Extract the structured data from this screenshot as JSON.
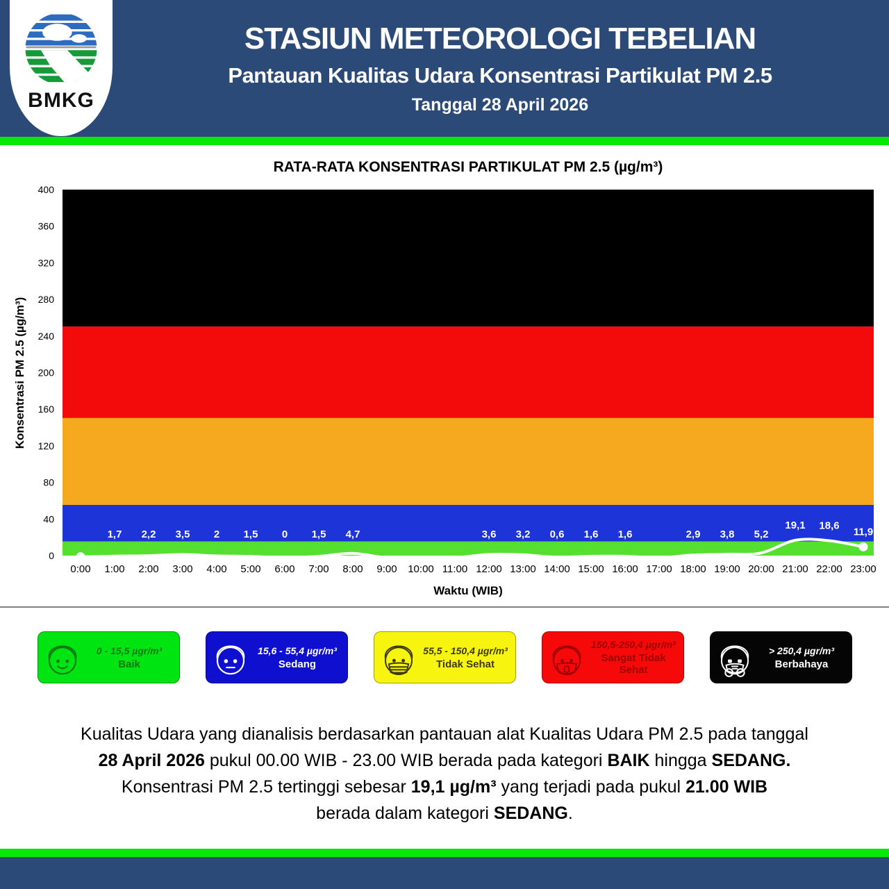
{
  "header": {
    "logo_text": "BMKG",
    "title": "STASIUN METEOROLOGI TEBELIAN",
    "subtitle": "Pantauan Kualitas Udara Konsentrasi Partikulat PM 2.5",
    "date_line": "Tanggal 28 April 2026"
  },
  "colors": {
    "header_bg": "#2b4a78",
    "strip_green": "#07e907",
    "footer_bg": "#2b4a78",
    "divider": "#7f7f7f"
  },
  "chart_data": {
    "type": "line",
    "title": "RATA-RATA KONSENTRASI PARTIKULAT PM 2.5 (µg/m³)",
    "xlabel": "Waktu (WIB)",
    "ylabel": "Konsentrasi PM 2.5 (µg/m³)",
    "ylim": [
      0,
      400
    ],
    "yticks": [
      0,
      40,
      80,
      120,
      160,
      200,
      240,
      280,
      320,
      360,
      400
    ],
    "grid": false,
    "legend_position": "below",
    "categories": [
      "0:00",
      "1:00",
      "2:00",
      "3:00",
      "4:00",
      "5:00",
      "6:00",
      "7:00",
      "8:00",
      "9:00",
      "10:00",
      "11:00",
      "12:00",
      "13:00",
      "14:00",
      "15:00",
      "16:00",
      "17:00",
      "18:00",
      "19:00",
      "20:00",
      "21:00",
      "22:00",
      "23:00"
    ],
    "values": [
      1,
      1.7,
      2.2,
      3.5,
      2,
      1.5,
      0,
      1.5,
      4.7,
      0,
      0,
      0,
      3.6,
      3.2,
      0.6,
      1.6,
      1.6,
      0,
      2.9,
      3.8,
      5.2,
      19.1,
      18.6,
      11.9
    ],
    "labels": [
      "",
      "1,7",
      "2,2",
      "3,5",
      "2",
      "1,5",
      "0",
      "1,5",
      "4,7",
      "",
      "",
      "",
      "3,6",
      "3,2",
      "0,6",
      "1,6",
      "1,6",
      "",
      "2,9",
      "3,8",
      "5,2",
      "19,1",
      "18,6",
      "11,9"
    ],
    "line_color": "#ffffff",
    "bands": [
      {
        "name": "baik",
        "from": 0,
        "to": 15.5,
        "color": "#55df2e"
      },
      {
        "name": "sedang",
        "from": 15.5,
        "to": 55.4,
        "color": "#1c34d8"
      },
      {
        "name": "tidak-sehat",
        "from": 55.4,
        "to": 150.4,
        "color": "#f6a81e"
      },
      {
        "name": "sangat-tidak-sehat",
        "from": 150.4,
        "to": 250.4,
        "color": "#f30b0b"
      },
      {
        "name": "berbahaya",
        "from": 250.4,
        "to": 400,
        "color": "#000000"
      }
    ]
  },
  "legend": {
    "items": [
      {
        "range": "0 - 15,5 µgr/m³",
        "label": "Baik",
        "bg": "#00e412",
        "fg": "#0e7a0e"
      },
      {
        "range": "15,6 - 55,4 µgr/m³",
        "label": "Sedang",
        "bg": "#0f10cf",
        "fg": "#ffffff"
      },
      {
        "range": "55,5 - 150,4 µgr/m³",
        "label": "Tidak Sehat",
        "bg": "#f7f410",
        "fg": "#3f3b00"
      },
      {
        "range": "150,5-250,4 µgr/m³",
        "label": "Sangat Tidak Sehat",
        "bg": "#f60909",
        "fg": "#9e0000"
      },
      {
        "range": "> 250,4 µgr/m³",
        "label": "Berbahaya",
        "bg": "#050505",
        "fg": "#ffffff"
      }
    ]
  },
  "summary": {
    "lines": [
      [
        {
          "t": "Kualitas Udara yang dianalisis berdasarkan pantauan alat Kualitas Udara PM 2.5 pada tanggal",
          "b": false
        }
      ],
      [
        {
          "t": "28 April 2026",
          "b": true
        },
        {
          "t": " pukul 00.00 WIB - 23.00 WIB berada pada kategori ",
          "b": false
        },
        {
          "t": "BAIK",
          "b": true
        },
        {
          "t": " hingga ",
          "b": false
        },
        {
          "t": "SEDANG.",
          "b": true
        }
      ],
      [
        {
          "t": "Konsentrasi PM 2.5 tertinggi sebesar  ",
          "b": false
        },
        {
          "t": "19,1 µg/m³",
          "b": true
        },
        {
          "t": " yang terjadi pada pukul ",
          "b": false
        },
        {
          "t": "21.00 WIB",
          "b": true
        }
      ],
      [
        {
          "t": "berada dalam kategori ",
          "b": false
        },
        {
          "t": "SEDANG",
          "b": true
        },
        {
          "t": ".",
          "b": false
        }
      ]
    ]
  }
}
